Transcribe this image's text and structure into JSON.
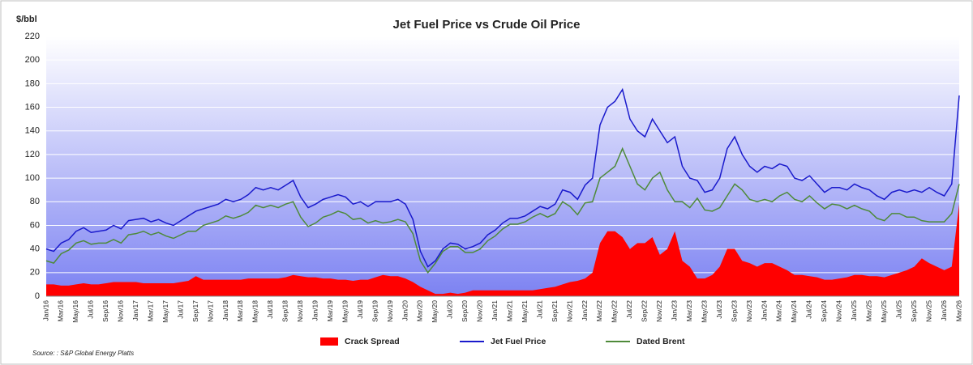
{
  "chart_data": {
    "type": "line",
    "title": "Jet Fuel Price vs Crude Oil Price",
    "y_label": "$/bbl",
    "source": "Source: : S&P Global Energy Platts",
    "categories": [
      "Jan/16",
      null,
      "Mar/16",
      null,
      "May/16",
      null,
      "Jul/16",
      null,
      "Sep/16",
      null,
      "Nov/16",
      null,
      "Jan/17",
      null,
      "Mar/17",
      null,
      "May/17",
      null,
      "Jul/17",
      null,
      "Sep/17",
      null,
      "Nov/17",
      null,
      "Jan/18",
      null,
      "Mar/18",
      null,
      "May/18",
      null,
      "Jul/18",
      null,
      "Sep/18",
      null,
      "Nov/18",
      null,
      "Jan/19",
      null,
      "Mar/19",
      null,
      "May/19",
      null,
      "Jul/19",
      null,
      "Sep/19",
      null,
      "Nov/19",
      null,
      "Jan/20",
      null,
      "Mar/20",
      null,
      "May/20",
      null,
      "Jul/20",
      null,
      "Sep/20",
      null,
      "Nov/20",
      null,
      "Jan/21",
      null,
      "Mar/21",
      null,
      "May/21",
      null,
      "Jul/21",
      null,
      "Sep/21",
      null,
      "Nov/21",
      null,
      "Jan/22",
      null,
      "Mar/22",
      null,
      "May/22",
      null,
      "Jul/22",
      null,
      "Sep/22",
      null,
      "Nov/22",
      null,
      "Jan/23",
      null,
      "Mar/23",
      null,
      "May/23",
      null,
      "Jul/23",
      null,
      "Sep/23",
      null,
      "Nov/23",
      null,
      "Jan/24",
      null,
      "Mar/24",
      null,
      "May/24",
      null,
      "Jul/24",
      null,
      "Sep/24",
      null,
      "Nov/24",
      null,
      "Jan/25",
      null,
      "Mar/25",
      null,
      "May/25",
      null,
      "Jul/25",
      null,
      "Sep/25",
      null,
      "Nov/25",
      null,
      "Jan/26",
      null,
      "Mar/26"
    ],
    "series": [
      {
        "name": "Crack Spread",
        "color": "#ff0000",
        "type": "area",
        "values": [
          10,
          10,
          9,
          9,
          10,
          11,
          10,
          10,
          11,
          12,
          12,
          12,
          12,
          11,
          11,
          11,
          11,
          11,
          12,
          13,
          17,
          14,
          14,
          14,
          14,
          14,
          14,
          15,
          15,
          15,
          15,
          15,
          16,
          18,
          17,
          16,
          16,
          15,
          15,
          14,
          14,
          13,
          14,
          14,
          16,
          18,
          17,
          17,
          15,
          12,
          8,
          5,
          2,
          2,
          3,
          2,
          3,
          5,
          5,
          5,
          5,
          5,
          5,
          5,
          5,
          5,
          6,
          7,
          8,
          10,
          12,
          13,
          15,
          20,
          45,
          55,
          55,
          50,
          40,
          45,
          45,
          50,
          35,
          40,
          55,
          30,
          25,
          15,
          15,
          18,
          25,
          40,
          40,
          30,
          28,
          25,
          28,
          28,
          25,
          22,
          18,
          18,
          17,
          16,
          14,
          14,
          15,
          16,
          18,
          18,
          17,
          17,
          16,
          18,
          20,
          22,
          25,
          32,
          28,
          25,
          22,
          25,
          78
        ]
      },
      {
        "name": "Jet Fuel Price",
        "color": "#1a1acc",
        "type": "line",
        "values": [
          40,
          38,
          45,
          48,
          55,
          58,
          54,
          55,
          56,
          60,
          57,
          64,
          65,
          66,
          63,
          65,
          62,
          60,
          64,
          68,
          72,
          74,
          76,
          78,
          82,
          80,
          82,
          86,
          92,
          90,
          92,
          90,
          94,
          98,
          84,
          75,
          78,
          82,
          84,
          86,
          84,
          78,
          80,
          76,
          80,
          80,
          80,
          82,
          78,
          65,
          38,
          25,
          30,
          40,
          45,
          44,
          40,
          42,
          45,
          52,
          56,
          62,
          66,
          66,
          68,
          72,
          76,
          74,
          78,
          90,
          88,
          82,
          94,
          100,
          145,
          160,
          165,
          175,
          150,
          140,
          135,
          150,
          140,
          130,
          135,
          110,
          100,
          98,
          88,
          90,
          100,
          125,
          135,
          120,
          110,
          105,
          110,
          108,
          112,
          110,
          100,
          98,
          102,
          95,
          88,
          92,
          92,
          90,
          95,
          92,
          90,
          85,
          82,
          88,
          90,
          88,
          90,
          88,
          92,
          88,
          85,
          95,
          170
        ]
      },
      {
        "name": "Dated Brent",
        "color": "#4e8a3a",
        "type": "line",
        "values": [
          30,
          28,
          36,
          39,
          45,
          47,
          44,
          45,
          45,
          48,
          45,
          52,
          53,
          55,
          52,
          54,
          51,
          49,
          52,
          55,
          55,
          60,
          62,
          64,
          68,
          66,
          68,
          71,
          77,
          75,
          77,
          75,
          78,
          80,
          67,
          59,
          62,
          67,
          69,
          72,
          70,
          65,
          66,
          62,
          64,
          62,
          63,
          65,
          63,
          53,
          30,
          20,
          28,
          38,
          42,
          42,
          37,
          37,
          40,
          47,
          51,
          57,
          61,
          61,
          63,
          67,
          70,
          67,
          70,
          80,
          76,
          69,
          79,
          80,
          100,
          105,
          110,
          125,
          110,
          95,
          90,
          100,
          105,
          90,
          80,
          80,
          75,
          83,
          73,
          72,
          75,
          85,
          95,
          90,
          82,
          80,
          82,
          80,
          85,
          88,
          82,
          80,
          85,
          79,
          74,
          78,
          77,
          74,
          77,
          74,
          72,
          66,
          64,
          70,
          70,
          67,
          67,
          64,
          63,
          63,
          63,
          70,
          95
        ]
      }
    ],
    "ylim": [
      0,
      220
    ],
    "yticks": [
      0,
      20,
      40,
      60,
      80,
      100,
      120,
      140,
      160,
      180,
      200,
      220
    ],
    "grid": true
  }
}
